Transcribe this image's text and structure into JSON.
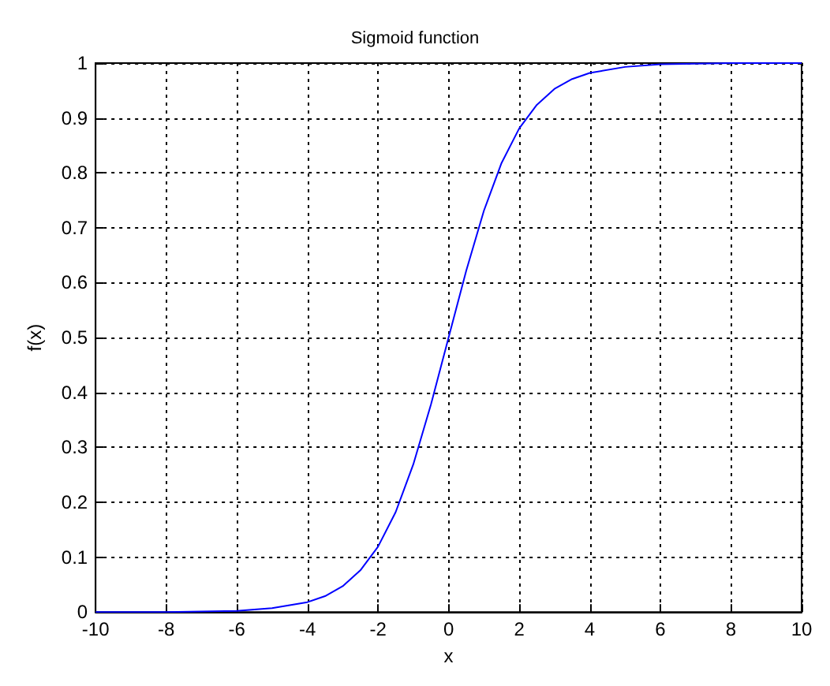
{
  "chart_data": {
    "type": "line",
    "title": "Sigmoid function",
    "xlabel": "x",
    "ylabel": "f(x)",
    "x": [
      -10,
      -9,
      -8,
      -7,
      -6,
      -5,
      -4,
      -3.5,
      -3,
      -2.5,
      -2,
      -1.5,
      -1,
      -0.5,
      0,
      0.5,
      1,
      1.5,
      2,
      2.5,
      3,
      3.5,
      4,
      5,
      6,
      7,
      8,
      9,
      10
    ],
    "series": [
      {
        "color": "#0000ff",
        "values": [
          0,
          0,
          0,
          0.001,
          0.002,
          0.007,
          0.018,
          0.029,
          0.047,
          0.076,
          0.119,
          0.182,
          0.269,
          0.378,
          0.5,
          0.622,
          0.731,
          0.818,
          0.881,
          0.924,
          0.953,
          0.971,
          0.982,
          0.993,
          0.998,
          0.999,
          1,
          1,
          1
        ]
      }
    ],
    "xlim": [
      -10,
      10
    ],
    "xticks": [
      -10,
      -8,
      -6,
      -4,
      -2,
      0,
      2,
      4,
      6,
      8,
      10
    ],
    "ylim": [
      0,
      1
    ],
    "yticks": [
      0,
      0.1,
      0.2,
      0.3,
      0.4,
      0.5,
      0.6,
      0.7,
      0.8,
      0.9,
      1
    ],
    "grid": true,
    "marker": "none",
    "line_style": "solid"
  }
}
